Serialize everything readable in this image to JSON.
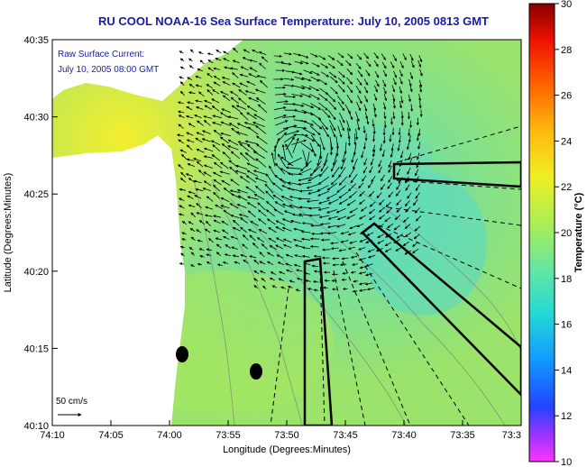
{
  "header": {
    "title": "RU COOL  NOAA-16  Sea Surface Temperature:  July 10, 2005 0813 GMT"
  },
  "map": {
    "overlay_title": "Raw Surface Current:",
    "overlay_time": "July 10, 2005 08:00 GMT",
    "scale_label": "50 cm/s",
    "x_axis_label": "Longitude (Degrees:Minutes)",
    "y_axis_label": "Latitude (Degrees:Minutes)",
    "x_ticks": [
      "74:10",
      "74:05",
      "74:00",
      "73:55",
      "73:50",
      "73:45",
      "73:40",
      "73:35",
      "73:3"
    ],
    "y_ticks": [
      "40:35",
      "40:30",
      "40:25",
      "40:20",
      "40:15",
      "40:10"
    ],
    "colors": {
      "land": "#ffffff",
      "ocean": "#9be36b",
      "warm_water": "#f2ef3b",
      "cool_water": "#55d9c4",
      "arrows": "#000000",
      "text": "#1a1aa8"
    }
  },
  "colorbar": {
    "label": "Temperature (°C)",
    "ticks": [
      "30",
      "28",
      "26",
      "24",
      "22",
      "20",
      "18",
      "16",
      "14",
      "12",
      "10"
    ],
    "min": 10,
    "max": 30
  }
}
